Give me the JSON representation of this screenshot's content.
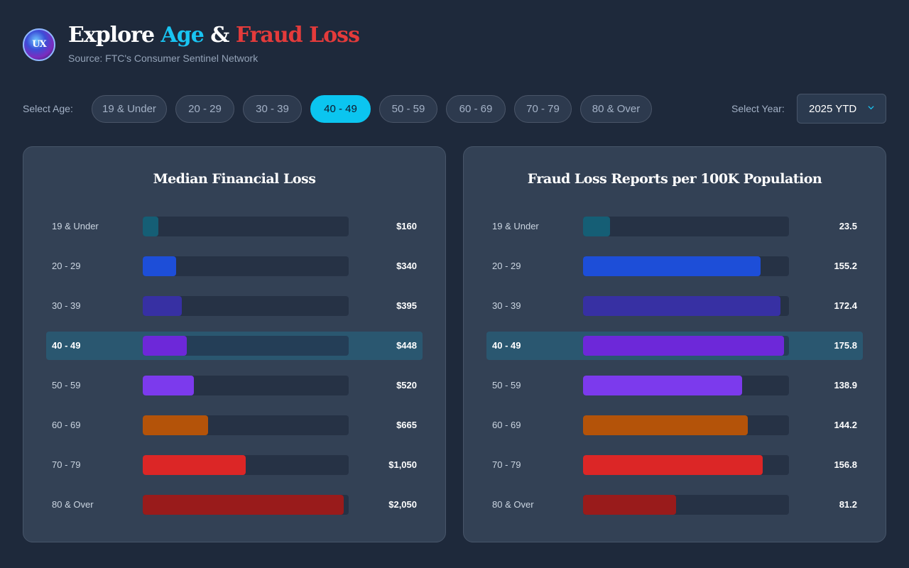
{
  "header": {
    "title_explore": "Explore",
    "title_age": "Age",
    "title_amp": "&",
    "title_fraud": "Fraud Loss",
    "subtitle": "Source: FTC's Consumer Sentinel Network",
    "logo_text": "UX"
  },
  "controls": {
    "age_label": "Select Age:",
    "age_options": [
      "19 & Under",
      "20 - 29",
      "30 - 39",
      "40 - 49",
      "50 - 59",
      "60 - 69",
      "70 - 79",
      "80 & Over"
    ],
    "selected_age": "40 - 49",
    "year_label": "Select Year:",
    "year_value": "2025 YTD"
  },
  "colors": {
    "accent": "#0bc5f0",
    "bars": [
      "#155e75",
      "#1d4ed8",
      "#3730a3",
      "#6d28d9",
      "#7c3aed",
      "#b45309",
      "#dc2626",
      "#991b1b"
    ]
  },
  "chart_data": [
    {
      "type": "bar",
      "orientation": "horizontal",
      "title": "Median Financial Loss",
      "categories": [
        "19 & Under",
        "20 - 29",
        "30 - 39",
        "40 - 49",
        "50 - 59",
        "60 - 69",
        "70 - 79",
        "80 & Over"
      ],
      "values": [
        160,
        340,
        395,
        448,
        520,
        665,
        1050,
        2050
      ],
      "value_labels": [
        "$160",
        "$340",
        "$395",
        "$448",
        "$520",
        "$665",
        "$1,050",
        "$2,050"
      ],
      "xlim": [
        0,
        2100
      ],
      "highlighted": "40 - 49"
    },
    {
      "type": "bar",
      "orientation": "horizontal",
      "title": "Fraud Loss Reports per 100K Population",
      "categories": [
        "19 & Under",
        "20 - 29",
        "30 - 39",
        "40 - 49",
        "50 - 59",
        "60 - 69",
        "70 - 79",
        "80 & Over"
      ],
      "values": [
        23.5,
        155.2,
        172.4,
        175.8,
        138.9,
        144.2,
        156.8,
        81.2
      ],
      "value_labels": [
        "23.5",
        "155.2",
        "172.4",
        "175.8",
        "138.9",
        "144.2",
        "156.8",
        "81.2"
      ],
      "xlim": [
        0,
        180
      ],
      "highlighted": "40 - 49"
    }
  ]
}
